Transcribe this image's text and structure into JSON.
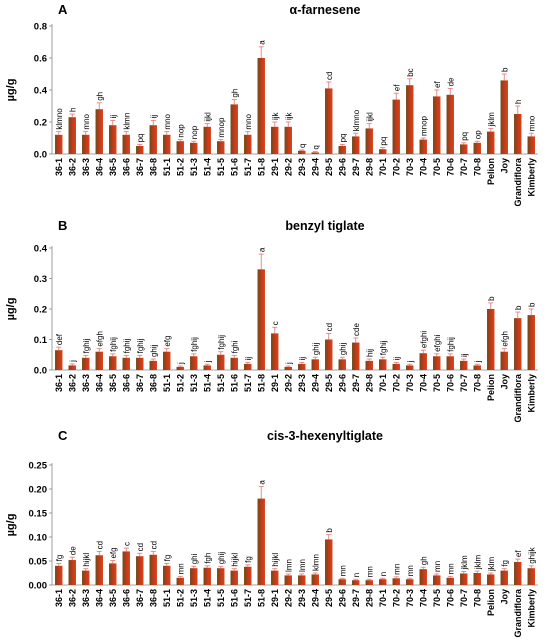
{
  "chart_data": [
    {
      "type": "bar",
      "panel_label": "A",
      "title": "α-farnesene",
      "ylabel": "µg/g",
      "ylim": [
        0,
        0.8
      ],
      "yticks": [
        "0.0",
        "0.2",
        "0.4",
        "0.6",
        "0.8"
      ],
      "categories": [
        "36-1",
        "36-2",
        "36-3",
        "36-4",
        "36-5",
        "36-6",
        "36-7",
        "36-8",
        "51-1",
        "51-2",
        "51-3",
        "51-4",
        "51-5",
        "51-6",
        "51-7",
        "51-8",
        "29-1",
        "29-2",
        "29-3",
        "29-4",
        "29-5",
        "29-6",
        "29-7",
        "29-8",
        "70-1",
        "70-2",
        "70-3",
        "70-4",
        "70-5",
        "70-6",
        "70-7",
        "70-8",
        "Pelion",
        "Joy",
        "Grandiflora",
        "Kimberly"
      ],
      "values": [
        0.12,
        0.23,
        0.12,
        0.28,
        0.18,
        0.12,
        0.05,
        0.18,
        0.12,
        0.08,
        0.07,
        0.17,
        0.08,
        0.31,
        0.12,
        0.6,
        0.17,
        0.17,
        0.02,
        0.01,
        0.41,
        0.05,
        0.11,
        0.16,
        0.03,
        0.34,
        0.43,
        0.09,
        0.36,
        0.37,
        0.06,
        0.07,
        0.14,
        0.46,
        0.25,
        0.11
      ],
      "errors": [
        0.02,
        0.02,
        0.02,
        0.04,
        0.03,
        0.02,
        0.01,
        0.03,
        0.02,
        0.01,
        0.01,
        0.02,
        0.01,
        0.03,
        0.02,
        0.07,
        0.03,
        0.03,
        0.005,
        0.005,
        0.04,
        0.01,
        0.02,
        0.03,
        0.01,
        0.04,
        0.04,
        0.01,
        0.04,
        0.04,
        0.01,
        0.01,
        0.02,
        0.04,
        0.05,
        0.02
      ],
      "letters": [
        "klmno",
        "h",
        "mno",
        "gh",
        "ij",
        "klmn",
        "pq",
        "ij",
        "mno",
        "nop",
        "nop",
        "ijkl",
        "mnop",
        "gh",
        "mno",
        "a",
        "ijk",
        "ijk",
        "q",
        "q",
        "cd",
        "pq",
        "klmno",
        "ijkl",
        "pq",
        "ef",
        "bc",
        "mnop",
        "ef",
        "de",
        "pq",
        "op",
        "jklm",
        "b",
        "h",
        "mno"
      ]
    },
    {
      "type": "bar",
      "panel_label": "B",
      "title": "benzyl tiglate",
      "ylabel": "µg/g",
      "ylim": [
        0,
        0.4
      ],
      "yticks": [
        "0.0",
        "0.1",
        "0.2",
        "0.3",
        "0.4"
      ],
      "categories": [
        "36-1",
        "36-2",
        "36-3",
        "36-4",
        "36-5",
        "36-6",
        "36-7",
        "36-8",
        "51-1",
        "51-2",
        "51-3",
        "51-4",
        "51-5",
        "51-6",
        "51-7",
        "51-8",
        "29-1",
        "29-2",
        "29-3",
        "29-4",
        "29-5",
        "29-6",
        "29-7",
        "29-8",
        "70-1",
        "70-2",
        "70-3",
        "70-4",
        "70-5",
        "70-6",
        "70-7",
        "70-8",
        "Pelion",
        "Joy",
        "Grandiflora",
        "Kimberly"
      ],
      "values": [
        0.065,
        0.015,
        0.04,
        0.06,
        0.045,
        0.04,
        0.04,
        0.03,
        0.06,
        0.01,
        0.045,
        0.015,
        0.05,
        0.04,
        0.02,
        0.33,
        0.12,
        0.01,
        0.02,
        0.035,
        0.1,
        0.035,
        0.09,
        0.03,
        0.035,
        0.02,
        0.015,
        0.055,
        0.045,
        0.045,
        0.03,
        0.015,
        0.2,
        0.06,
        0.17,
        0.18
      ],
      "errors": [
        0.01,
        0.005,
        0.008,
        0.01,
        0.008,
        0.008,
        0.008,
        0.006,
        0.01,
        0.003,
        0.008,
        0.004,
        0.01,
        0.008,
        0.005,
        0.05,
        0.02,
        0.003,
        0.005,
        0.007,
        0.02,
        0.007,
        0.015,
        0.006,
        0.007,
        0.005,
        0.004,
        0.01,
        0.008,
        0.008,
        0.006,
        0.004,
        0.02,
        0.01,
        0.02,
        0.02
      ],
      "letters": [
        "def",
        "j",
        "fghij",
        "efgh",
        "fghij",
        "fghij",
        "fghij",
        "ghij",
        "efg",
        "j",
        "fghij",
        "j",
        "fghij",
        "fghi",
        "ij",
        "a",
        "c",
        "j",
        "ij",
        "ghij",
        "cd",
        "ghij",
        "cde",
        "hij",
        "fghij",
        "ij",
        "j",
        "efghi",
        "efghi",
        "fghij",
        "ij",
        "j",
        "b",
        "efgh",
        "b",
        "b"
      ]
    },
    {
      "type": "bar",
      "panel_label": "C",
      "title": "cis-3-hexenyltiglate",
      "ylabel": "µg/g",
      "ylim": [
        0,
        0.25
      ],
      "yticks": [
        "0.00",
        "0.05",
        "0.10",
        "0.15",
        "0.20",
        "0.25"
      ],
      "categories": [
        "36-1",
        "36-2",
        "36-3",
        "36-4",
        "36-5",
        "36-6",
        "36-7",
        "36-8",
        "51-1",
        "51-2",
        "51-3",
        "51-4",
        "51-5",
        "51-6",
        "51-7",
        "51-8",
        "29-1",
        "29-2",
        "29-3",
        "29-4",
        "29-5",
        "29-6",
        "29-7",
        "29-8",
        "70-1",
        "70-2",
        "70-3",
        "70-4",
        "70-5",
        "70-6",
        "70-7",
        "70-8",
        "Pelion",
        "Joy",
        "Grandiflora",
        "Kimberly"
      ],
      "values": [
        0.04,
        0.052,
        0.03,
        0.062,
        0.045,
        0.07,
        0.06,
        0.063,
        0.04,
        0.015,
        0.035,
        0.036,
        0.035,
        0.03,
        0.038,
        0.18,
        0.03,
        0.02,
        0.02,
        0.022,
        0.095,
        0.012,
        0.01,
        0.01,
        0.012,
        0.014,
        0.012,
        0.033,
        0.02,
        0.015,
        0.024,
        0.025,
        0.022,
        0.03,
        0.048,
        0.035
      ],
      "errors": [
        0.005,
        0.006,
        0.004,
        0.008,
        0.006,
        0.007,
        0.006,
        0.007,
        0.005,
        0.003,
        0.004,
        0.004,
        0.004,
        0.004,
        0.004,
        0.025,
        0.004,
        0.003,
        0.003,
        0.003,
        0.01,
        0.002,
        0.002,
        0.002,
        0.002,
        0.003,
        0.002,
        0.004,
        0.003,
        0.003,
        0.004,
        0.004,
        0.003,
        0.004,
        0.006,
        0.005
      ],
      "letters": [
        "fg",
        "de",
        "hijkl",
        "cd",
        "efg",
        "c",
        "cd",
        "cd",
        "fg",
        "mn",
        "ghi",
        "fgh",
        "ghij",
        "hijkl",
        "fg",
        "a",
        "hijkl",
        "lmn",
        "lmn",
        "klmn",
        "b",
        "mn",
        "n",
        "mn",
        "n",
        "mn",
        "mn",
        "gh",
        "mn",
        "mn",
        "jklm",
        "jklm",
        "jklm",
        "fg",
        "ef",
        "ghijk"
      ]
    }
  ]
}
